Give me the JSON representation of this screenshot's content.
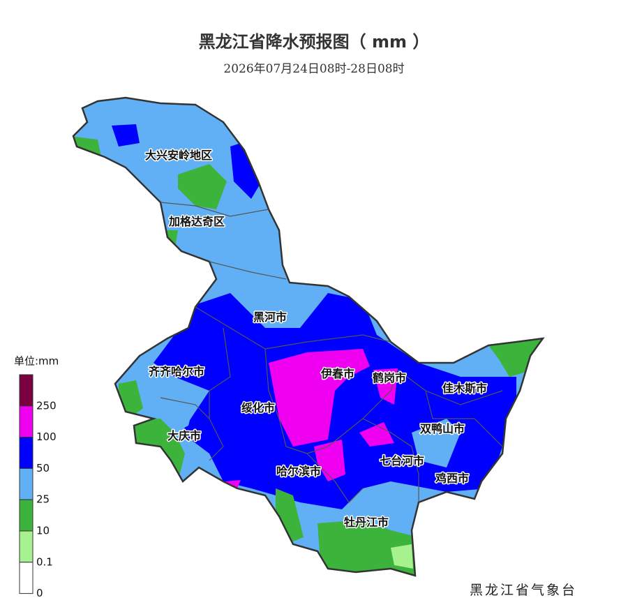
{
  "title": "黑龙江省降水预报图（ mm ）",
  "subtitle": "2026年07月24日08时-28日08时",
  "regions": [
    {
      "label": "大兴安岭地区"
    },
    {
      "label": "加格达奇区"
    },
    {
      "label": "黑河市"
    },
    {
      "label": "齐齐哈尔市"
    },
    {
      "label": "伊春市"
    },
    {
      "label": "鹤岗市"
    },
    {
      "label": "佳木斯市"
    },
    {
      "label": "绥化市"
    },
    {
      "label": "大庆市"
    },
    {
      "label": "双鸭山市"
    },
    {
      "label": "七台河市"
    },
    {
      "label": "哈尔滨市"
    },
    {
      "label": "鸡西市"
    },
    {
      "label": "牡丹江市"
    }
  ],
  "legend": {
    "unit": "单位:mm",
    "labels": [
      250,
      100,
      50,
      25,
      10,
      0.1,
      0
    ],
    "colors": [
      "#7a0040",
      "#f000f0",
      "#0000ff",
      "#61b0f5",
      "#3cb43c",
      "#a6f28e",
      "#ffffff"
    ]
  },
  "footer": "黑龙江省气象台"
}
